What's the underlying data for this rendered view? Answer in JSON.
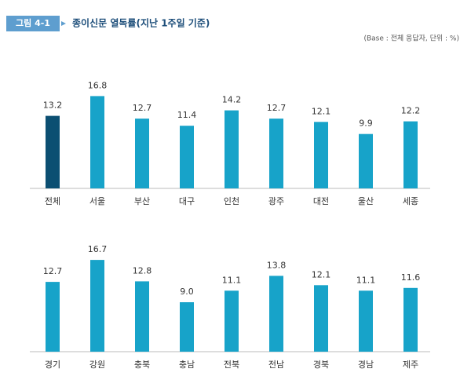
{
  "header": {
    "label": "그림 4-1",
    "title": "종이신문 열독률(지난 1주일 기준)",
    "note": "(Base : 전체 응답자, 단위 : %)"
  },
  "chart_data": [
    {
      "type": "bar",
      "categories": [
        "전체",
        "서울",
        "부산",
        "대구",
        "인천",
        "광주",
        "대전",
        "울산",
        "세종"
      ],
      "values": [
        13.2,
        16.8,
        12.7,
        11.4,
        14.2,
        12.7,
        12.1,
        9.9,
        12.2
      ],
      "value_labels": [
        "13.2",
        "16.8",
        "12.7",
        "11.4",
        "14.2",
        "12.7",
        "12.1",
        "9.9",
        "12.2"
      ],
      "colors": [
        "#0b4f72",
        "#17a3c9",
        "#17a3c9",
        "#17a3c9",
        "#17a3c9",
        "#17a3c9",
        "#17a3c9",
        "#17a3c9",
        "#17a3c9"
      ],
      "ylim": [
        0,
        18
      ]
    },
    {
      "type": "bar",
      "categories": [
        "경기",
        "강원",
        "충북",
        "충남",
        "전북",
        "전남",
        "경북",
        "경남",
        "제주"
      ],
      "values": [
        12.7,
        16.7,
        12.8,
        9.0,
        11.1,
        13.8,
        12.1,
        11.1,
        11.6
      ],
      "value_labels": [
        "12.7",
        "16.7",
        "12.8",
        "9.0",
        "11.1",
        "13.8",
        "12.1",
        "11.1",
        "11.6"
      ],
      "colors": [
        "#17a3c9",
        "#17a3c9",
        "#17a3c9",
        "#17a3c9",
        "#17a3c9",
        "#17a3c9",
        "#17a3c9",
        "#17a3c9",
        "#17a3c9"
      ],
      "ylim": [
        0,
        18
      ]
    }
  ]
}
